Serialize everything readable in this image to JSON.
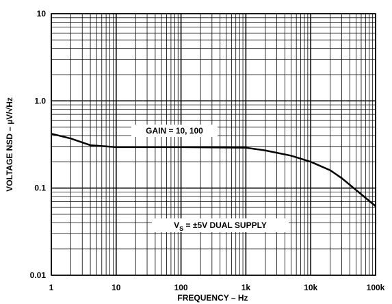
{
  "chart_data": {
    "type": "line",
    "xlabel": "FREQUENCY – Hz",
    "ylabel": "VOLTAGE NSD – µV/√Hz",
    "x": [
      1,
      2,
      4,
      10,
      100,
      1000,
      2000,
      5000,
      10000,
      20000,
      30000,
      50000,
      100000
    ],
    "values": [
      0.42,
      0.37,
      0.31,
      0.295,
      0.295,
      0.29,
      0.27,
      0.235,
      0.2,
      0.16,
      0.13,
      0.095,
      0.062
    ],
    "color": "#000000",
    "xscale": "log",
    "yscale": "log",
    "grid": true,
    "xlim": [
      1,
      100000
    ],
    "xticks": [
      1,
      10,
      100,
      {
        "value": 1000,
        "label": "1k"
      },
      {
        "value": 10000,
        "label": "10k"
      },
      {
        "value": 100000,
        "label": "100k"
      }
    ],
    "ylim": [
      0.01,
      10
    ],
    "yticks": [
      0.01,
      0.1,
      {
        "value": 1,
        "label": "1.0"
      },
      10
    ],
    "annotations": [
      {
        "parts": [
          "GAIN = 10, 100"
        ]
      },
      {
        "parts": [
          "V",
          "S",
          " = ±5V DUAL SUPPLY"
        ]
      }
    ]
  }
}
